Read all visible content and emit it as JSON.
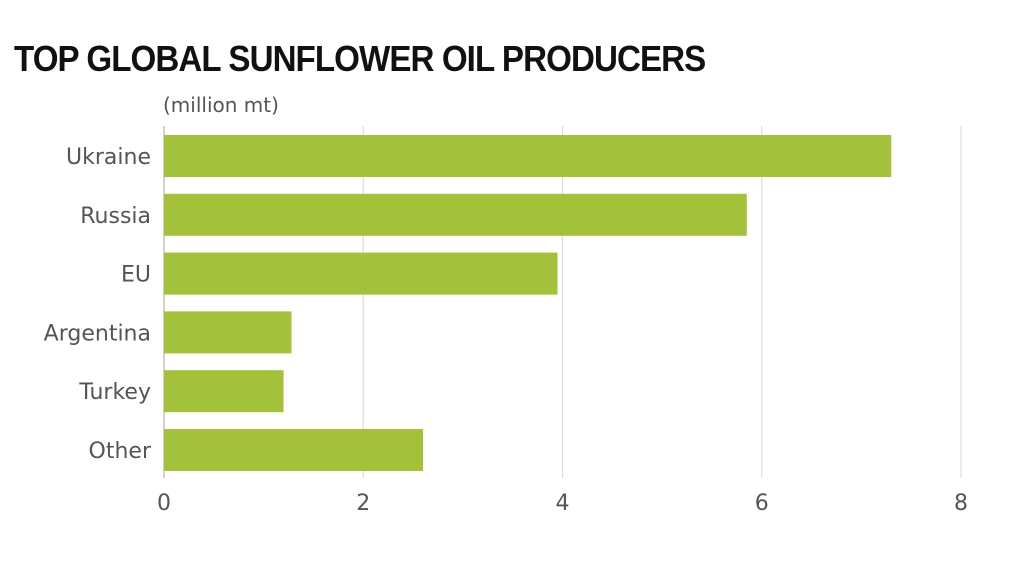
{
  "chart_data": {
    "type": "bar",
    "orientation": "horizontal",
    "title": "TOP GLOBAL SUNFLOWER OIL PRODUCERS",
    "unit_label": "(million mt)",
    "categories": [
      "Ukraine",
      "Russia",
      "EU",
      "Argentina",
      "Turkey",
      "Other"
    ],
    "values": [
      7.3,
      5.85,
      3.95,
      1.28,
      1.2,
      2.6
    ],
    "xlim": [
      0,
      8
    ],
    "x_ticks": [
      "0",
      "2",
      "4",
      "6",
      "8"
    ],
    "grid": "vertical",
    "bar_color": "#a3c13a",
    "grid_color": "#d9dedb"
  }
}
